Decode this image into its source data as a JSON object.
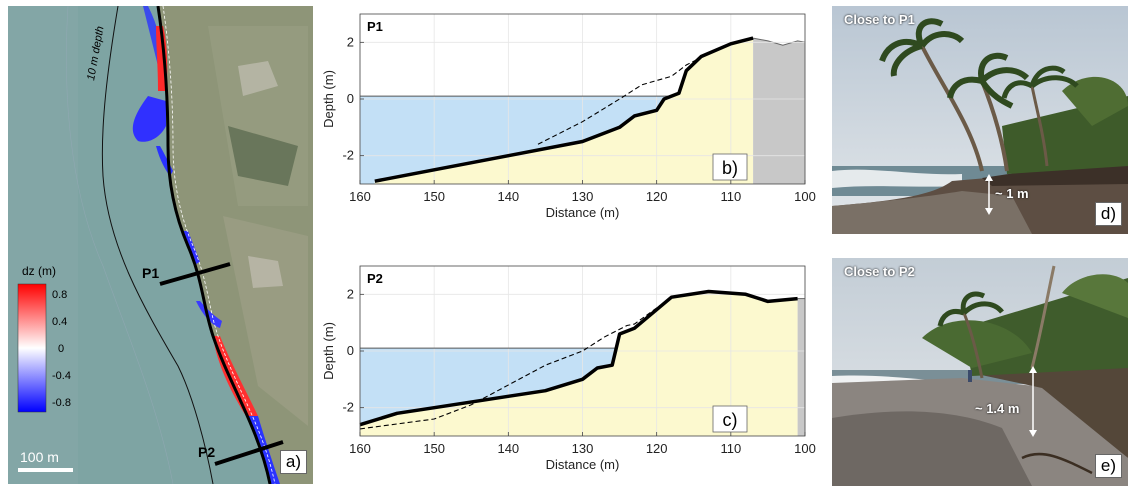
{
  "panel_a": {
    "depth_contour_label": "10 m depth",
    "colorbar_title": "dz (m)",
    "colorbar_ticks": [
      "0.8",
      "0.4",
      "0",
      "-0.4",
      "-0.8"
    ],
    "scale_bar_label": "100 m",
    "profile_1_label": "P1",
    "profile_2_label": "P2",
    "panel_letter": "a)",
    "colors": {
      "erosion": "#1a1aff",
      "accretion": "#ff1a1a",
      "sea": "#7fa5a3",
      "land": "#8f9a7a"
    }
  },
  "chart_data": [
    {
      "type": "area",
      "panel_letter": "b)",
      "profile_label": "P1",
      "xlabel": "Distance (m)",
      "ylabel": "Depth (m)",
      "xlim": [
        160,
        100
      ],
      "ylim": [
        -3,
        3
      ],
      "x_ticks": [
        160,
        150,
        140,
        130,
        120,
        110,
        100
      ],
      "y_ticks": [
        -2,
        0,
        2
      ],
      "water_level": 0.1,
      "post_profile": [
        [
          158,
          -2.9
        ],
        [
          150,
          -2.5
        ],
        [
          140,
          -2.0
        ],
        [
          130,
          -1.5
        ],
        [
          125,
          -1.0
        ],
        [
          123,
          -0.6
        ],
        [
          120,
          -0.4
        ],
        [
          119,
          0.0
        ],
        [
          117,
          0.2
        ],
        [
          116,
          1.0
        ],
        [
          114,
          1.5
        ],
        [
          110,
          1.95
        ],
        [
          107,
          2.15
        ]
      ],
      "pre_profile": [
        [
          136,
          -1.6
        ],
        [
          130,
          -0.8
        ],
        [
          125,
          0.0
        ],
        [
          122,
          0.5
        ],
        [
          118,
          0.8
        ],
        [
          116,
          1.2
        ],
        [
          113,
          1.6
        ],
        [
          110,
          1.95
        ],
        [
          107,
          2.15
        ]
      ],
      "land_fill_profile": [
        [
          107,
          2.15
        ],
        [
          105,
          2.05
        ],
        [
          103,
          1.9
        ],
        [
          101,
          2.05
        ],
        [
          100,
          2.0
        ]
      ],
      "colors": {
        "water": "#c3e0f6",
        "sand": "#fcf9cf",
        "land": "#c8c8c8"
      }
    },
    {
      "type": "area",
      "panel_letter": "c)",
      "profile_label": "P2",
      "xlabel": "Distance (m)",
      "ylabel": "Depth (m)",
      "xlim": [
        160,
        100
      ],
      "ylim": [
        -3,
        3
      ],
      "x_ticks": [
        160,
        150,
        140,
        130,
        120,
        110,
        100
      ],
      "y_ticks": [
        -2,
        0,
        2
      ],
      "water_level": 0.1,
      "post_profile": [
        [
          160,
          -2.6
        ],
        [
          155,
          -2.2
        ],
        [
          150,
          -2.0
        ],
        [
          140,
          -1.6
        ],
        [
          135,
          -1.4
        ],
        [
          130,
          -1.0
        ],
        [
          128,
          -0.6
        ],
        [
          126,
          -0.5
        ],
        [
          125,
          0.6
        ],
        [
          123,
          0.8
        ],
        [
          118,
          1.9
        ],
        [
          113,
          2.1
        ],
        [
          108,
          2.0
        ],
        [
          105,
          1.75
        ],
        [
          101,
          1.85
        ]
      ],
      "pre_profile": [
        [
          160,
          -2.75
        ],
        [
          150,
          -2.4
        ],
        [
          145,
          -1.9
        ],
        [
          135,
          -0.5
        ],
        [
          130,
          0.0
        ],
        [
          127,
          0.5
        ],
        [
          124,
          0.9
        ],
        [
          123,
          0.95
        ],
        [
          118,
          1.9
        ],
        [
          113,
          2.1
        ],
        [
          108,
          2.0
        ],
        [
          105,
          1.75
        ],
        [
          101,
          1.85
        ]
      ],
      "land_fill_profile": [
        [
          101,
          1.85
        ],
        [
          100,
          1.85
        ]
      ],
      "colors": {
        "water": "#c3e0f6",
        "sand": "#fcf9cf",
        "land": "#c8c8c8"
      }
    }
  ],
  "panel_d": {
    "title": "Close to P1",
    "measure": "~ 1 m",
    "panel_letter": "d)"
  },
  "panel_e": {
    "title": "Close to P2",
    "measure": "~ 1.4 m",
    "panel_letter": "e)"
  }
}
